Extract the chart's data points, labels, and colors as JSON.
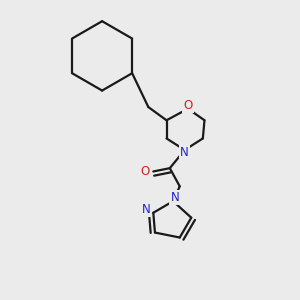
{
  "background_color": "#ebebeb",
  "bond_color": "#1a1a1a",
  "nitrogen_color": "#2222cc",
  "oxygen_color": "#cc2222",
  "line_width": 1.6,
  "figsize": [
    3.0,
    3.0
  ],
  "dpi": 100,
  "xlim": [
    0.05,
    0.95
  ],
  "ylim": [
    0.05,
    0.95
  ]
}
